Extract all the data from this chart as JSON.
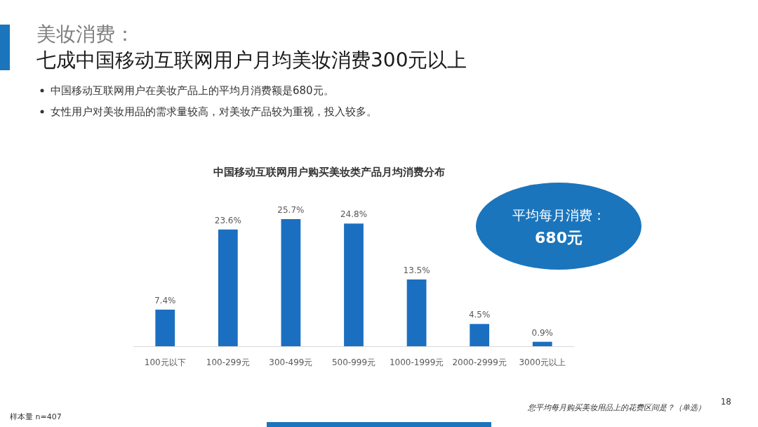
{
  "chart_data": {
    "type": "bar",
    "title": "中国移动互联网用户购买美妆类产品月均消费分布",
    "categories": [
      "100元以下",
      "100-299元",
      "300-499元",
      "500-999元",
      "1000-1999元",
      "2000-2999元",
      "3000元以上"
    ],
    "values": [
      7.4,
      23.6,
      25.7,
      24.8,
      13.5,
      4.5,
      0.9
    ],
    "value_labels": [
      "7.4%",
      "23.6%",
      "25.7%",
      "24.8%",
      "13.5%",
      "4.5%",
      "0.9%"
    ],
    "color": "#1b6fc0",
    "annotations": [
      "美妆消费：",
      "七成中国移动互联网用户月均美妆消费300元以上",
      "中国移动互联网用户在美妆产品上的平均月消费额是680元。",
      "女性用户对美妆用品的需求量较高，对美妆产品较为重视，投入较多。",
      "平均每月消费：",
      "680元",
      "样本量 n=407",
      "您平均每月购买美妆用品上的花费区间是？（单选）",
      "18"
    ]
  }
}
